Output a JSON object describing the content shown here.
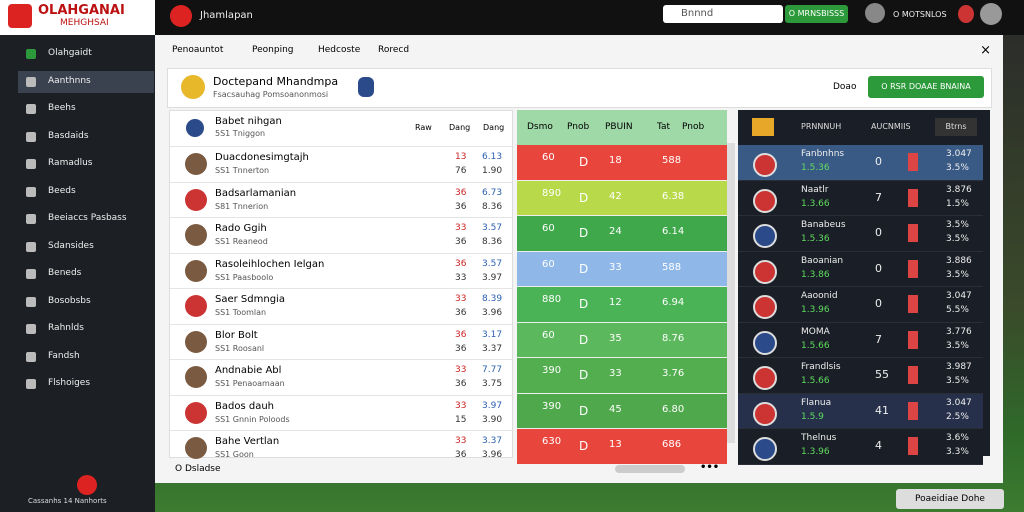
{
  "topbar": {
    "logo_title": "OLAHGANAI",
    "logo_sub": "MEHGHSAI",
    "page_title": "Jhamlapan",
    "search": "Bnnnd",
    "button": "O MRNSBISSS",
    "user": "O MOTSNLOS"
  },
  "sidebar": {
    "items": [
      "Olahgaidt",
      "Aanthnns",
      "Beehs",
      "Basdaids",
      "Ramadlus",
      "Beeds",
      "Beeiaccs Pasbass",
      "Sdansides",
      "Beneds",
      "Bosobsbs",
      "Rahnlds",
      "Fandsh",
      "Flshoiges"
    ],
    "footer": "Cassanhs 14 Nanhorts"
  },
  "tabs": [
    "Penoauntot",
    "Peonping",
    "Hedcoste",
    "Rorecd"
  ],
  "header_card": {
    "title": "Doctepand Mhandmpa",
    "subtitle": "Fsacsauhag Pomsoanonmosi",
    "link": "Doao",
    "button": "O RSR DOAAE BNAINA"
  },
  "player_list": {
    "head_name": "Babet nihgan",
    "head_sub": "5S1 Tniggon",
    "columns": [
      "Raw",
      "Dang",
      "Dang"
    ],
    "rows": [
      [
        "Duacdonesimgtajh",
        "SS1 Tnnerton",
        "13",
        "6.13",
        "76",
        "1.90"
      ],
      [
        "Badsarlamanian",
        "S81 Tnnerion",
        "36",
        "6.73",
        "36",
        "8.36"
      ],
      [
        "Rado Ggih",
        "SS1 Reaneod",
        "33",
        "3.57",
        "36",
        "8.36"
      ],
      [
        "Rasoleihlochen Ielgan",
        "SS1 Paasboolo",
        "36",
        "3.57",
        "33",
        "3.97"
      ],
      [
        "Saer Sdmngia",
        "SS1 Toomlan",
        "33",
        "8.39",
        "36",
        "3.96"
      ],
      [
        "Blor Bolt",
        "SS1 Roosanl",
        "36",
        "3.17",
        "36",
        "3.37"
      ],
      [
        "Andnabie Abl",
        "SS1 Penaoamaan",
        "33",
        "7.77",
        "36",
        "3.75"
      ],
      [
        "Bados dauh",
        "SS1 Gnnin Poloods",
        "33",
        "3.97",
        "15",
        "3.90"
      ],
      [
        "Bahe Vertlan",
        "SS1 Goon",
        "33",
        "3.37",
        "36",
        "3.96"
      ]
    ]
  },
  "score_table": {
    "columns": [
      "Dsmo",
      "Pnob",
      "PBUIN",
      "Tat",
      "Pnob"
    ],
    "rows": [
      {
        "color": "#e8453c",
        "cells": [
          "60",
          "D",
          "18",
          "588"
        ]
      },
      {
        "color": "#b8d94a",
        "cells": [
          "890",
          "D",
          "42",
          "6.38"
        ]
      },
      {
        "color": "#3ea84a",
        "cells": [
          "60",
          "D",
          "24",
          "6.14"
        ]
      },
      {
        "color": "#8fb8e8",
        "cells": [
          "60",
          "D",
          "33",
          "588"
        ]
      },
      {
        "color": "#4ab356",
        "cells": [
          "880",
          "D",
          "12",
          "6.94"
        ]
      },
      {
        "color": "#5cb85c",
        "cells": [
          "60",
          "D",
          "35",
          "8.76"
        ]
      },
      {
        "color": "#52ae4e",
        "cells": [
          "390",
          "D",
          "33",
          "3.76"
        ]
      },
      {
        "color": "#4fa84b",
        "cells": [
          "390",
          "D",
          "45",
          "6.80"
        ]
      },
      {
        "color": "#e8453c",
        "cells": [
          "630",
          "D",
          "13",
          "686"
        ]
      }
    ]
  },
  "dark_table": {
    "columns": [
      "PRNNNUH",
      "AUCNMIIS"
    ],
    "button": "Btrns",
    "rows": [
      [
        "Fanbnhns",
        "1.5.36",
        "0",
        "3.047",
        "3.5%"
      ],
      [
        "Naatlr",
        "1.3.66",
        "7",
        "3.876",
        "1.5%"
      ],
      [
        "Banabeus",
        "1.5.36",
        "0",
        "3.5%",
        "3.5%"
      ],
      [
        "Baoanian",
        "1.3.86",
        "0",
        "3.886",
        "3.5%"
      ],
      [
        "Aaoonid",
        "1.3.96",
        "0",
        "3.047",
        "5.5%"
      ],
      [
        "MOMA",
        "1.5.66",
        "7",
        "3.776",
        "3.5%"
      ],
      [
        "Frandlsis",
        "1.5.66",
        "55",
        "3.987",
        "3.5%"
      ],
      [
        "Flanua",
        "1.5.9",
        "41",
        "3.047",
        "2.5%"
      ],
      [
        "Thelnus",
        "1.3.96",
        "4",
        "3.6%",
        "3.3%"
      ]
    ]
  },
  "footer": {
    "left": "O Dsladse",
    "chip": "Poaeidiae Dohe"
  }
}
